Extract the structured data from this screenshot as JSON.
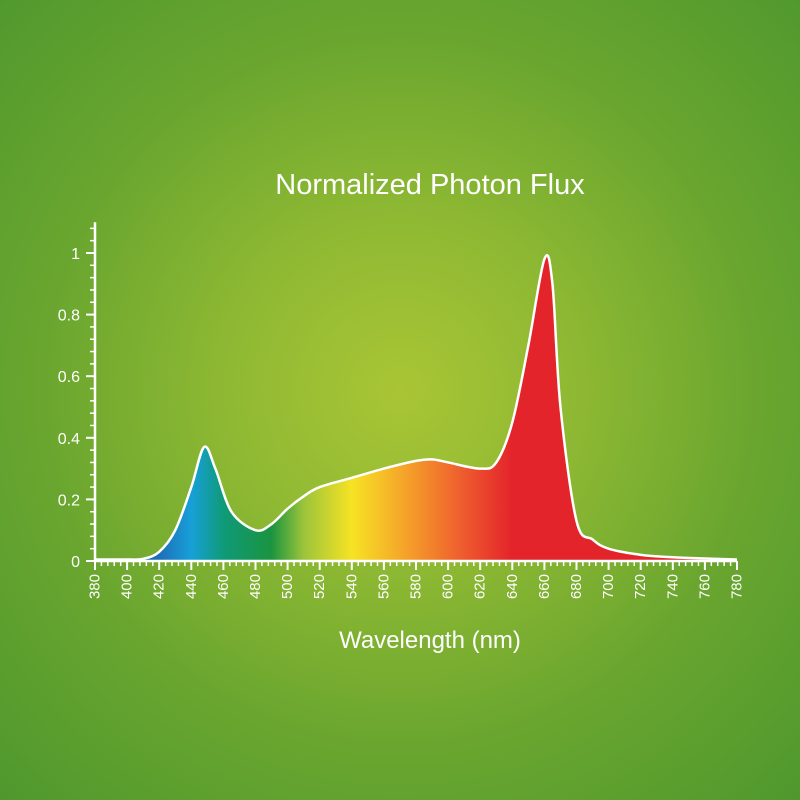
{
  "chart_data": {
    "type": "area",
    "title": "Normalized Photon Flux",
    "xlabel": "Wavelength (nm)",
    "ylabel": "",
    "xlim": [
      380,
      780
    ],
    "ylim": [
      0,
      1.1
    ],
    "x_ticks": [
      380,
      400,
      420,
      440,
      460,
      480,
      500,
      520,
      540,
      560,
      580,
      600,
      620,
      640,
      660,
      680,
      700,
      720,
      740,
      760,
      780
    ],
    "y_ticks": [
      0,
      0.2,
      0.4,
      0.6,
      0.8,
      1
    ],
    "y_tick_labels": [
      "0",
      "0.2",
      "0.4",
      "0.6",
      "0.8",
      "1"
    ],
    "grid": false,
    "fill": "spectrum gradient",
    "series": [
      {
        "x": [
          380,
          390,
          400,
          410,
          420,
          430,
          440,
          448,
          455,
          465,
          480,
          490,
          500,
          510,
          520,
          540,
          560,
          580,
          590,
          600,
          620,
          630,
          640,
          650,
          660,
          665,
          670,
          680,
          690,
          700,
          720,
          740,
          760,
          780
        ],
        "y": [
          0.005,
          0.005,
          0.005,
          0.007,
          0.03,
          0.1,
          0.24,
          0.37,
          0.3,
          0.16,
          0.1,
          0.12,
          0.17,
          0.21,
          0.24,
          0.27,
          0.3,
          0.325,
          0.33,
          0.32,
          0.3,
          0.32,
          0.45,
          0.7,
          0.98,
          0.9,
          0.5,
          0.13,
          0.07,
          0.04,
          0.02,
          0.012,
          0.008,
          0.005
        ]
      }
    ],
    "colors": {
      "background_center": "#a9c535",
      "background_edge": "#4f982e",
      "line": "#ffffff",
      "spectrum": [
        "#1f4f9e",
        "#1f6fb8",
        "#17a0d8",
        "#0f9a78",
        "#1b9440",
        "#9cc43a",
        "#f6e324",
        "#f5a02a",
        "#ee5a2e",
        "#e3242b",
        "#e3242b"
      ]
    }
  }
}
